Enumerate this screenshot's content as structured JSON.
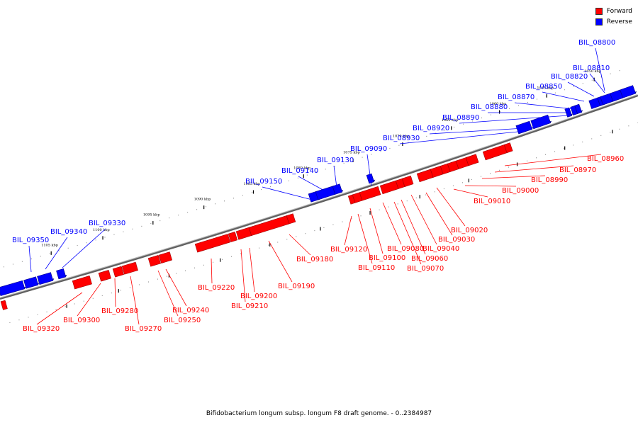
{
  "legend": {
    "forward_label": "Forward",
    "reverse_label": "Reverse",
    "forward_color": "#ff0000",
    "reverse_color": "#0000ff"
  },
  "caption": "Bifidobacterium longum subsp. longum F8 draft genome. - 0..2384987",
  "ruler": {
    "labels": [
      "1050 kbp",
      "1055 kbp",
      "1060 kbp",
      "1065 kbp",
      "1070 kbp",
      "1075 kbp",
      "1080 kbp",
      "1085 kbp",
      "1090 kbp",
      "1095 kbp",
      "1100 kbp",
      "1105 kbp"
    ]
  },
  "genes": {
    "reverse": [
      "BIL_08800",
      "BIL_08810",
      "BIL_08820",
      "BIL_08850",
      "BIL_08870",
      "BIL_08880",
      "BIL_08890",
      "BIL_08920",
      "BIL_08930",
      "BIL_09090",
      "BIL_09130",
      "BIL_09140",
      "BIL_09150",
      "BIL_09330",
      "BIL_09340",
      "BIL_09350"
    ],
    "forward": [
      "BIL_08960",
      "BIL_08970",
      "BIL_08990",
      "BIL_09000",
      "BIL_09010",
      "BIL_09020",
      "BIL_09030",
      "BIL_09040",
      "BIL_09060",
      "BIL_09070",
      "BIL_09080",
      "BIL_09100",
      "BIL_09110",
      "BIL_09120",
      "BIL_09180",
      "BIL_09190",
      "BIL_09200",
      "BIL_09210",
      "BIL_09220",
      "BIL_09240",
      "BIL_09250",
      "BIL_09270",
      "BIL_09280",
      "BIL_09300",
      "BIL_09320"
    ]
  }
}
